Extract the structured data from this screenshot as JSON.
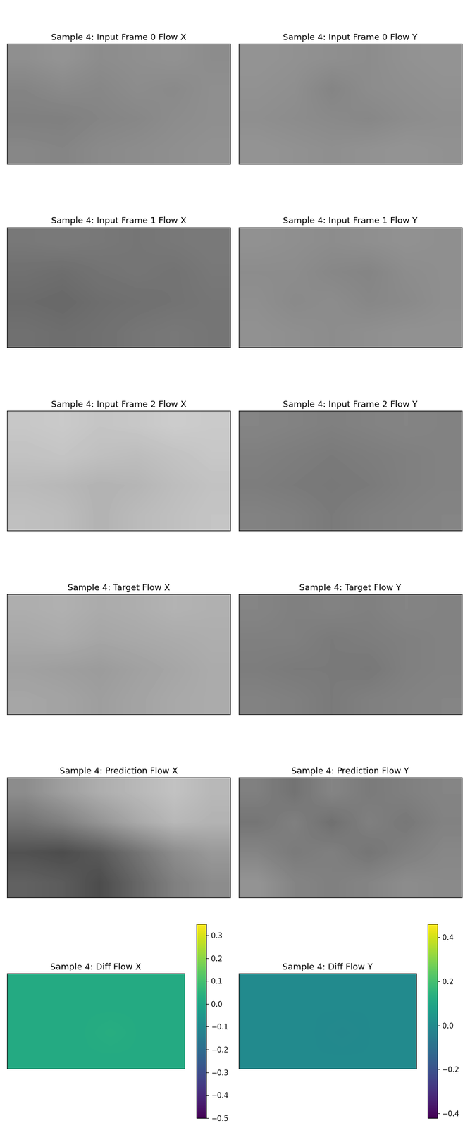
{
  "chart_data": [
    {
      "type": "heatmap",
      "title": "Sample 4: Input Frame 0 Flow X",
      "color": "gray",
      "tick_labels": false,
      "cells": [
        [
          0.56,
          0.58,
          0.55,
          0.56,
          0.57,
          0.55
        ],
        [
          0.52,
          0.54,
          0.53,
          0.55,
          0.54,
          0.56
        ],
        [
          0.5,
          0.5,
          0.52,
          0.53,
          0.55,
          0.56
        ],
        [
          0.53,
          0.52,
          0.54,
          0.55,
          0.56,
          0.57
        ]
      ]
    },
    {
      "type": "heatmap",
      "title": "Sample 4: Input Frame 0 Flow Y",
      "color": "gray",
      "tick_labels": false,
      "cells": [
        [
          0.58,
          0.57,
          0.56,
          0.55,
          0.57,
          0.58
        ],
        [
          0.57,
          0.56,
          0.52,
          0.55,
          0.56,
          0.57
        ],
        [
          0.56,
          0.55,
          0.54,
          0.53,
          0.55,
          0.56
        ],
        [
          0.58,
          0.57,
          0.56,
          0.57,
          0.58,
          0.57
        ]
      ]
    },
    {
      "type": "heatmap",
      "title": "Sample 4: Input Frame 1 Flow X",
      "color": "gray",
      "tick_labels": false,
      "cells": [
        [
          0.47,
          0.48,
          0.47,
          0.46,
          0.47,
          0.48
        ],
        [
          0.44,
          0.43,
          0.45,
          0.46,
          0.45,
          0.47
        ],
        [
          0.42,
          0.41,
          0.43,
          0.44,
          0.45,
          0.46
        ],
        [
          0.44,
          0.43,
          0.44,
          0.46,
          0.47,
          0.46
        ]
      ]
    },
    {
      "type": "heatmap",
      "title": "Sample 4: Input Frame 1 Flow Y",
      "color": "gray",
      "tick_labels": false,
      "cells": [
        [
          0.57,
          0.56,
          0.55,
          0.56,
          0.57,
          0.56
        ],
        [
          0.55,
          0.55,
          0.53,
          0.52,
          0.55,
          0.56
        ],
        [
          0.56,
          0.54,
          0.55,
          0.53,
          0.54,
          0.56
        ],
        [
          0.57,
          0.56,
          0.55,
          0.56,
          0.57,
          0.57
        ]
      ]
    },
    {
      "type": "heatmap",
      "title": "Sample 4: Input Frame 2 Flow X",
      "color": "gray",
      "tick_labels": false,
      "cells": [
        [
          0.78,
          0.79,
          0.77,
          0.78,
          0.8,
          0.79
        ],
        [
          0.76,
          0.77,
          0.75,
          0.74,
          0.76,
          0.78
        ],
        [
          0.73,
          0.72,
          0.7,
          0.71,
          0.74,
          0.76
        ],
        [
          0.75,
          0.74,
          0.7,
          0.73,
          0.75,
          0.77
        ]
      ]
    },
    {
      "type": "heatmap",
      "title": "Sample 4: Input Frame 2 Flow Y",
      "color": "gray",
      "tick_labels": false,
      "cells": [
        [
          0.52,
          0.51,
          0.5,
          0.51,
          0.52,
          0.51
        ],
        [
          0.5,
          0.49,
          0.48,
          0.49,
          0.5,
          0.51
        ],
        [
          0.49,
          0.48,
          0.47,
          0.48,
          0.5,
          0.51
        ],
        [
          0.51,
          0.5,
          0.48,
          0.5,
          0.51,
          0.52
        ]
      ]
    },
    {
      "type": "heatmap",
      "title": "Sample 4: Target Flow X",
      "color": "gray",
      "tick_labels": false,
      "cells": [
        [
          0.68,
          0.69,
          0.67,
          0.68,
          0.7,
          0.69
        ],
        [
          0.66,
          0.67,
          0.65,
          0.66,
          0.67,
          0.68
        ],
        [
          0.63,
          0.62,
          0.61,
          0.63,
          0.65,
          0.67
        ],
        [
          0.65,
          0.64,
          0.62,
          0.64,
          0.66,
          0.67
        ]
      ]
    },
    {
      "type": "heatmap",
      "title": "Sample 4: Target Flow Y",
      "color": "gray",
      "tick_labels": false,
      "cells": [
        [
          0.52,
          0.5,
          0.51,
          0.5,
          0.52,
          0.51
        ],
        [
          0.5,
          0.5,
          0.48,
          0.49,
          0.5,
          0.51
        ],
        [
          0.49,
          0.48,
          0.48,
          0.47,
          0.5,
          0.51
        ],
        [
          0.51,
          0.5,
          0.48,
          0.5,
          0.51,
          0.52
        ]
      ]
    },
    {
      "type": "heatmap",
      "title": "Sample 4: Prediction Flow X",
      "color": "gray",
      "tick_labels": false,
      "cells": [
        [
          0.55,
          0.62,
          0.68,
          0.72,
          0.76,
          0.72
        ],
        [
          0.45,
          0.5,
          0.58,
          0.66,
          0.72,
          0.7
        ],
        [
          0.32,
          0.3,
          0.35,
          0.45,
          0.55,
          0.6
        ],
        [
          0.38,
          0.36,
          0.3,
          0.4,
          0.5,
          0.55
        ]
      ]
    },
    {
      "type": "heatmap",
      "title": "Sample 4: Prediction Flow Y",
      "color": "gray",
      "tick_labels": false,
      "cells": [
        [
          0.5,
          0.45,
          0.52,
          0.48,
          0.5,
          0.52
        ],
        [
          0.46,
          0.5,
          0.44,
          0.5,
          0.47,
          0.51
        ],
        [
          0.52,
          0.48,
          0.5,
          0.46,
          0.5,
          0.53
        ],
        [
          0.58,
          0.52,
          0.5,
          0.52,
          0.55,
          0.54
        ]
      ]
    },
    {
      "type": "heatmap",
      "title": "Sample 4: Diff Flow X",
      "color": "viridis",
      "tick_labels": false,
      "cells": [
        [
          0.02,
          0.02,
          0.02,
          0.02,
          0.02,
          0.02
        ],
        [
          0.02,
          0.02,
          0.02,
          0.02,
          0.02,
          0.02
        ],
        [
          0.02,
          0.02,
          0.02,
          0.03,
          0.02,
          0.02
        ],
        [
          0.02,
          0.02,
          0.02,
          0.02,
          0.02,
          0.02
        ]
      ],
      "colorbar_range": [
        -0.5,
        0.35
      ],
      "colorbar_ticks": [
        {
          "value": -0.5,
          "label": "−0.5"
        },
        {
          "value": -0.4,
          "label": "−0.4"
        },
        {
          "value": -0.3,
          "label": "−0.3"
        },
        {
          "value": -0.2,
          "label": "−0.2"
        },
        {
          "value": -0.1,
          "label": "−0.1"
        },
        {
          "value": 0,
          "label": "0.0"
        },
        {
          "value": 0.1,
          "label": "0.1"
        },
        {
          "value": 0.2,
          "label": "0.2"
        },
        {
          "value": 0.3,
          "label": "0.3"
        }
      ]
    },
    {
      "type": "heatmap",
      "title": "Sample 4: Diff Flow Y",
      "color": "viridis",
      "tick_labels": false,
      "cells": [
        [
          0.0,
          0.0,
          0.0,
          0.0,
          0.0,
          0.0
        ],
        [
          0.0,
          0.0,
          0.0,
          0.0,
          0.0,
          0.0
        ],
        [
          0.0,
          0.0,
          0.0,
          -0.01,
          0.0,
          0.0
        ],
        [
          0.0,
          0.0,
          0.0,
          0.0,
          0.0,
          0.0
        ]
      ],
      "colorbar_range": [
        -0.42,
        0.46
      ],
      "colorbar_ticks": [
        {
          "value": -0.4,
          "label": "−0.4"
        },
        {
          "value": -0.2,
          "label": "−0.2"
        },
        {
          "value": 0,
          "label": "0.0"
        },
        {
          "value": 0.2,
          "label": "0.2"
        },
        {
          "value": 0.4,
          "label": "0.4"
        }
      ]
    }
  ]
}
